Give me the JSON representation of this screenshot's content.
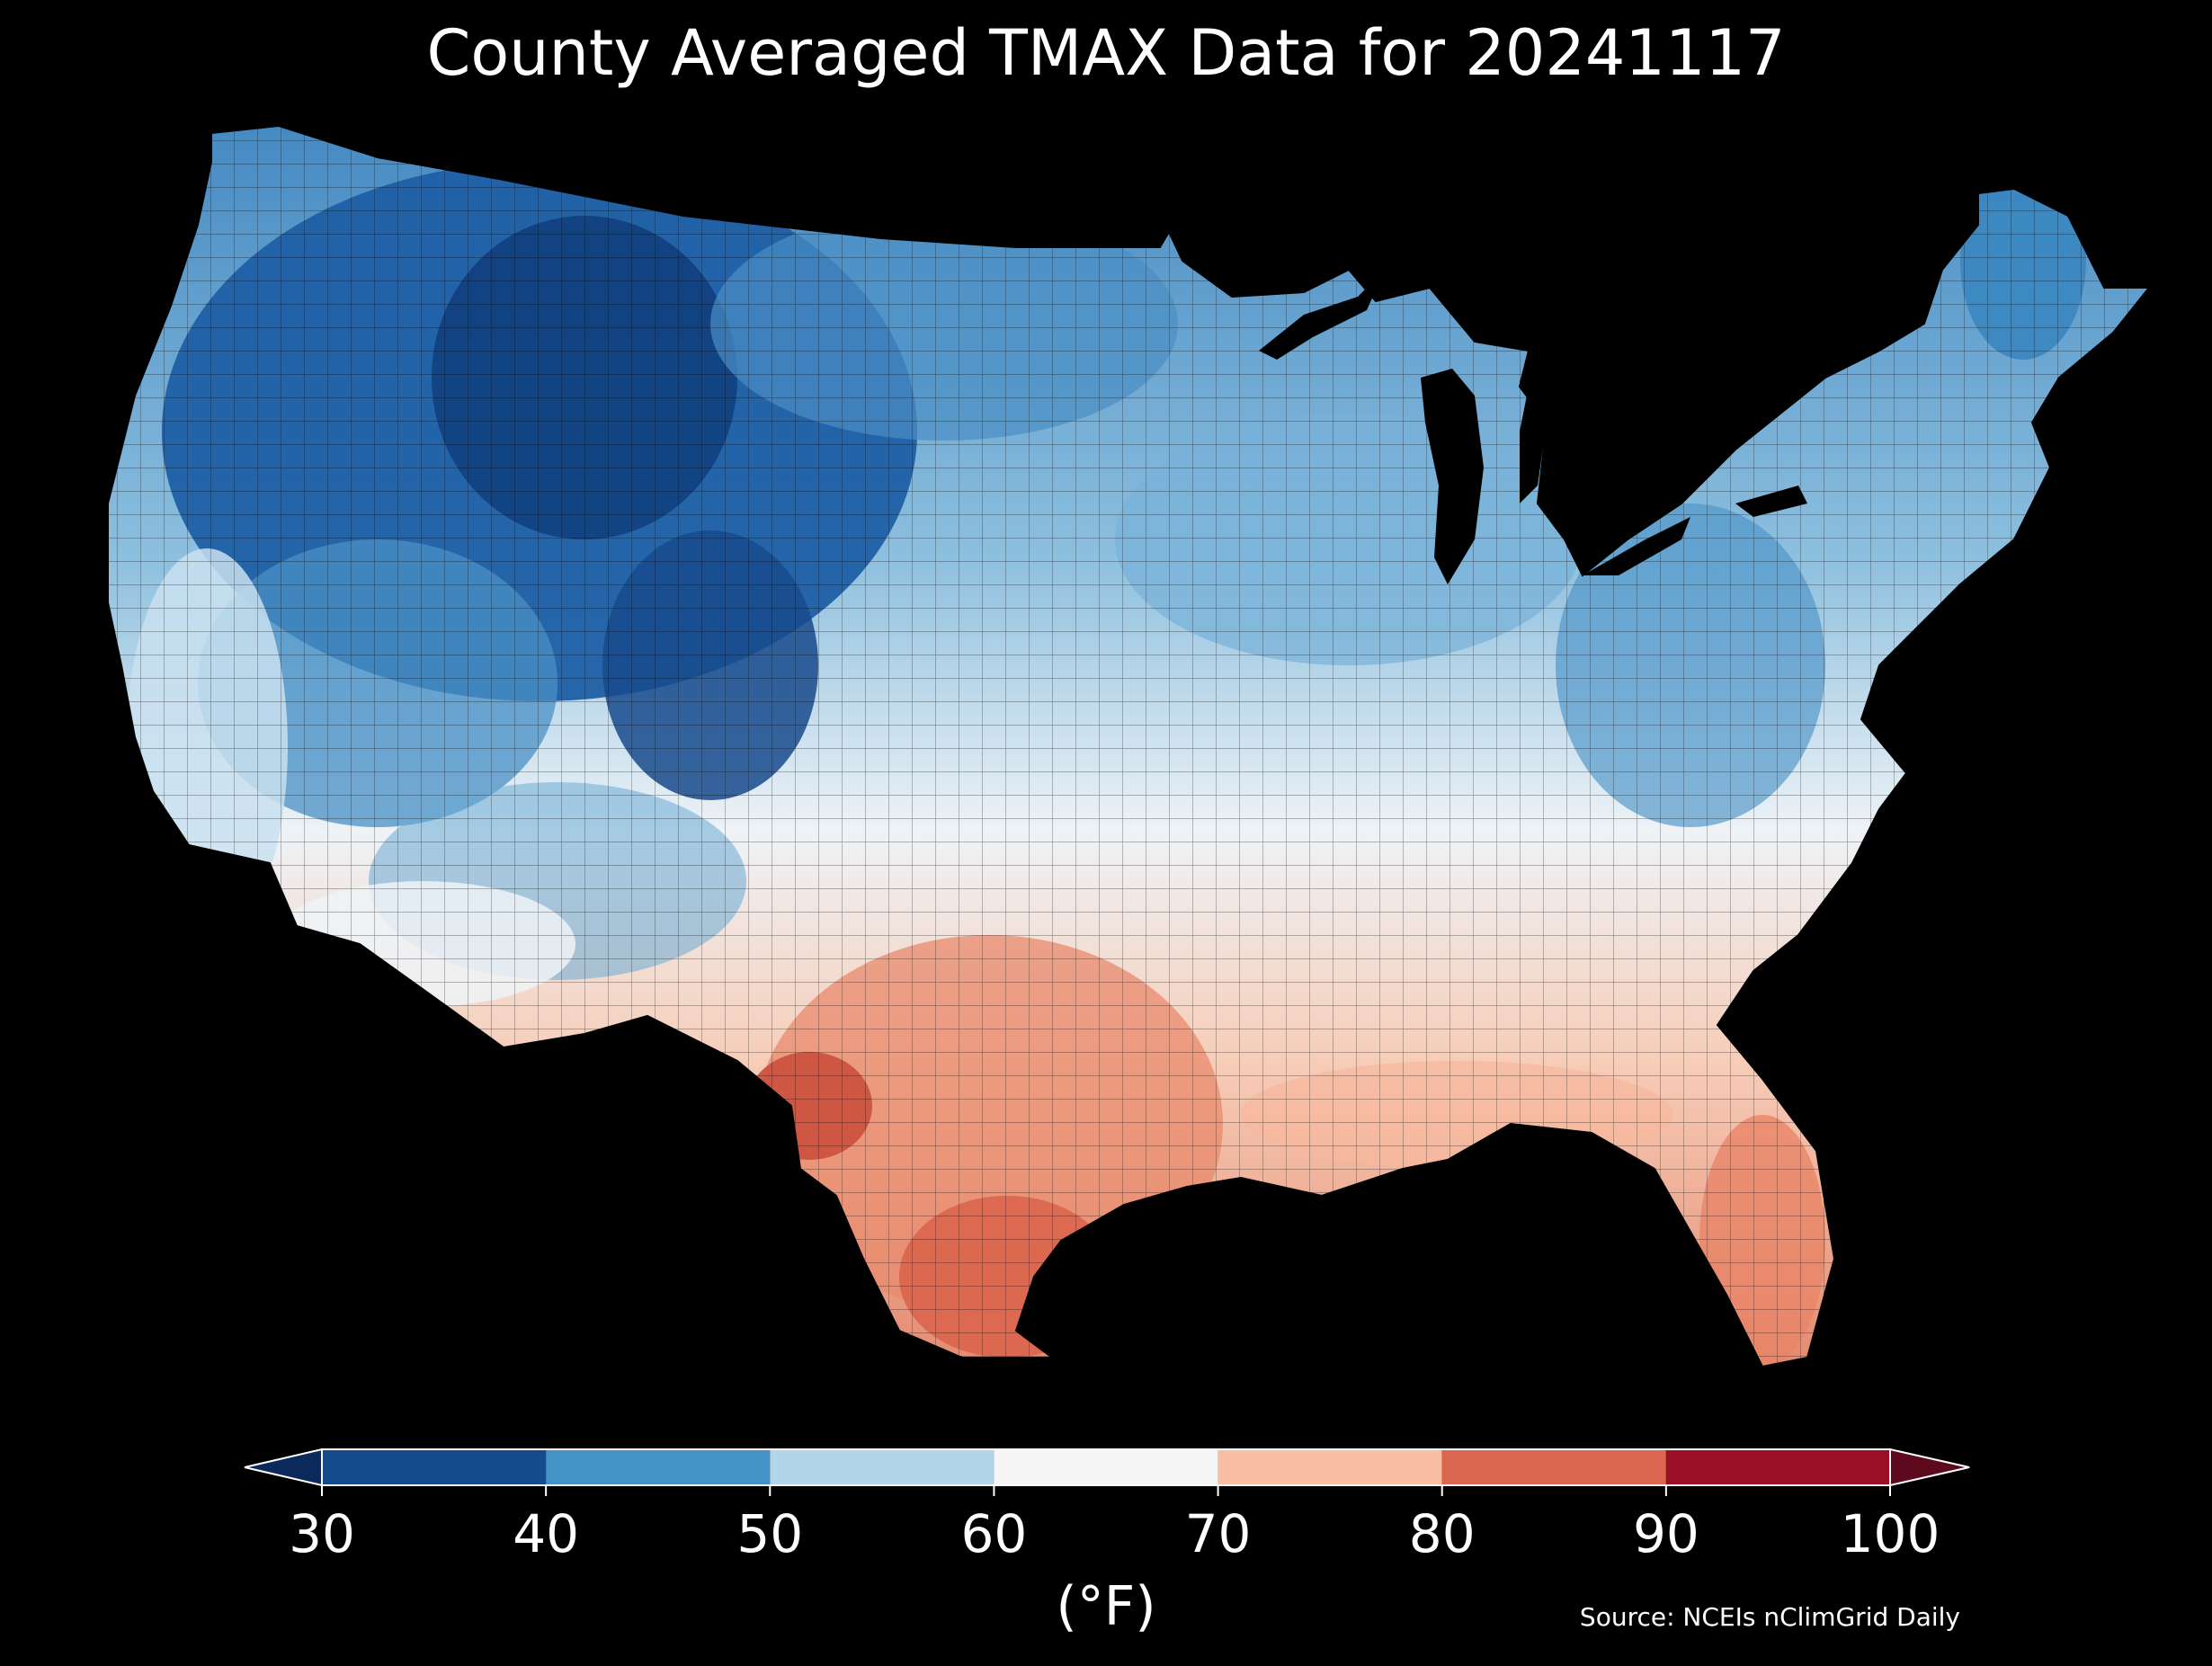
{
  "title": "County Averaged TMAX Data for 20241117",
  "colorbar": {
    "ticks": [
      "30",
      "40",
      "50",
      "60",
      "70",
      "80",
      "90",
      "100"
    ],
    "tick_values": [
      30,
      40,
      50,
      60,
      70,
      80,
      90,
      100
    ],
    "colors": [
      "#154c8e",
      "#4592c6",
      "#b3d5ea",
      "#f5f5f5",
      "#f9bfa4",
      "#db6751",
      "#9b1027"
    ],
    "under_color": "#0b2a5b",
    "over_color": "#5e0a1e",
    "extend": "both",
    "unit_label": "(°F)"
  },
  "source": "Source: NCEIs nClimGrid Daily",
  "map": {
    "region": "Contiguous United States",
    "variable": "TMAX",
    "background": "#000000"
  }
}
